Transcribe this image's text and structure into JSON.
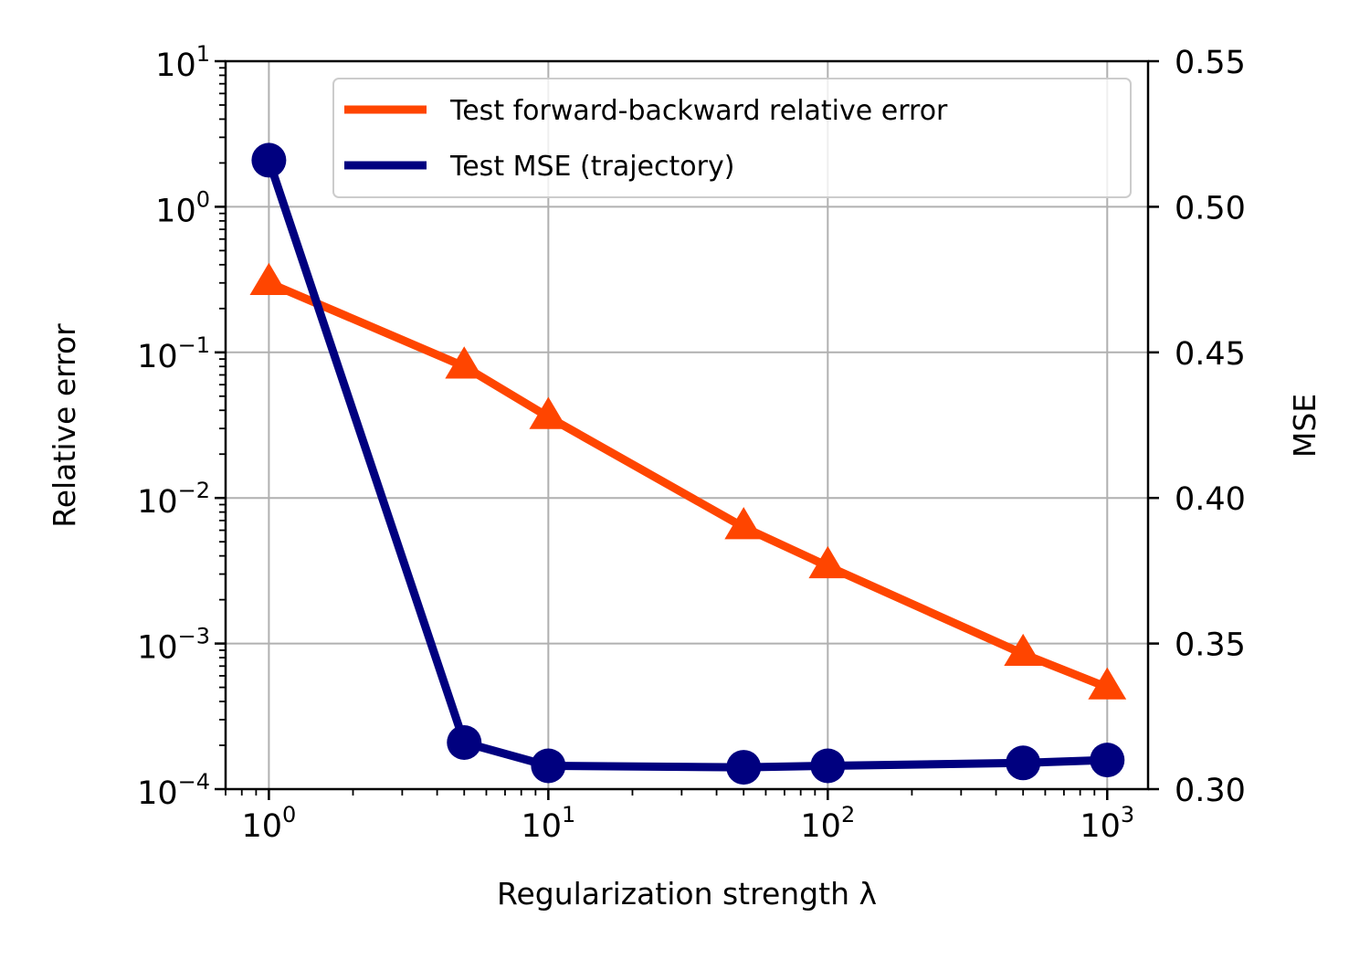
{
  "chart_data": {
    "type": "line",
    "xlabel": "Regularization strength λ",
    "ylabel_left": "Relative error",
    "ylabel_right": "MSE",
    "x_scale": "log",
    "x_range": [
      0.7,
      1400
    ],
    "x_ticks": [
      {
        "base": "10",
        "exp": "0"
      },
      {
        "base": "10",
        "exp": "1"
      },
      {
        "base": "10",
        "exp": "2"
      },
      {
        "base": "10",
        "exp": "3"
      }
    ],
    "y_left_scale": "log",
    "y_left_range": [
      0.0001,
      10
    ],
    "y_left_ticks": [
      {
        "base": "10",
        "exp": "1"
      },
      {
        "base": "10",
        "exp": "0"
      },
      {
        "base": "10",
        "exp": "−1"
      },
      {
        "base": "10",
        "exp": "−2"
      },
      {
        "base": "10",
        "exp": "−3"
      },
      {
        "base": "10",
        "exp": "−4"
      }
    ],
    "y_right_scale": "linear",
    "y_right_range": [
      0.3,
      0.55
    ],
    "y_right_ticks": [
      "0.55",
      "0.50",
      "0.45",
      "0.40",
      "0.35",
      "0.30"
    ],
    "grid": true,
    "legend_position": "top-right",
    "x": [
      1,
      5,
      10,
      50,
      100,
      500,
      1000
    ],
    "series": [
      {
        "name": "Test forward-backward relative error",
        "axis": "left",
        "color": "#ff4500",
        "marker": "triangle",
        "values": [
          0.3,
          0.08,
          0.036,
          0.0063,
          0.0034,
          0.00085,
          0.0005
        ]
      },
      {
        "name": "Test MSE (trajectory)",
        "axis": "right",
        "color": "#00007f",
        "marker": "circle",
        "values": [
          0.516,
          0.316,
          0.308,
          0.3075,
          0.308,
          0.309,
          0.31
        ]
      }
    ]
  }
}
